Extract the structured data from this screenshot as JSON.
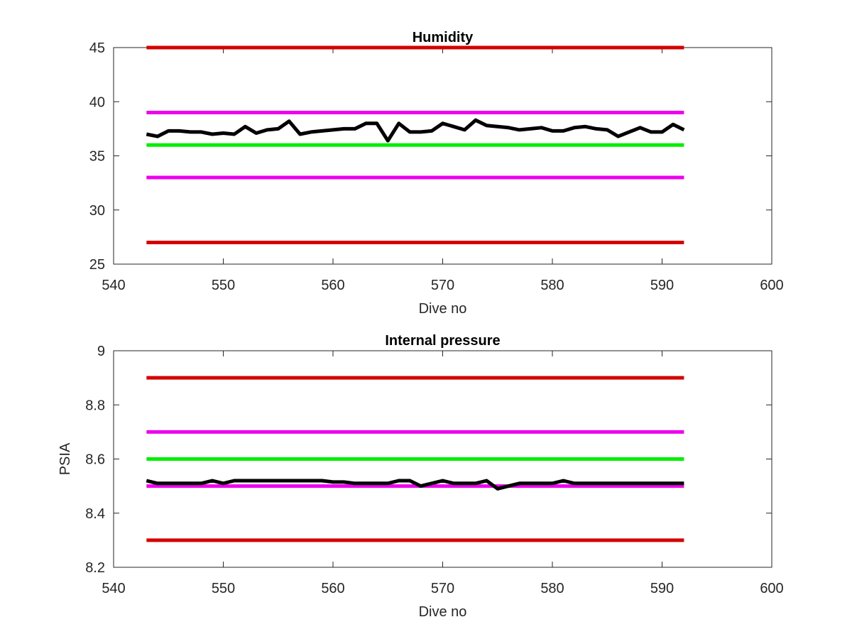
{
  "chart_data": [
    {
      "type": "line",
      "title": "Humidity",
      "xlabel": "Dive no",
      "ylabel": "",
      "xlim": [
        540,
        600
      ],
      "ylim": [
        25,
        45
      ],
      "xticks": [
        "540",
        "550",
        "560",
        "570",
        "580",
        "590",
        "600"
      ],
      "yticks": [
        "25",
        "30",
        "35",
        "40",
        "45"
      ],
      "grid": false,
      "legend": "none",
      "reference_lines": [
        {
          "y": 45,
          "x_range": [
            543,
            592
          ],
          "color": "#d40000"
        },
        {
          "y": 39,
          "x_range": [
            543,
            592
          ],
          "color": "#ee00ee"
        },
        {
          "y": 36,
          "x_range": [
            543,
            592
          ],
          "color": "#00ee00"
        },
        {
          "y": 33,
          "x_range": [
            543,
            592
          ],
          "color": "#ee00ee"
        },
        {
          "y": 27,
          "x_range": [
            543,
            592
          ],
          "color": "#d40000"
        }
      ],
      "series": [
        {
          "color": "#000000",
          "x": [
            543,
            544,
            545,
            546,
            547,
            548,
            549,
            550,
            551,
            552,
            553,
            554,
            555,
            556,
            557,
            558,
            559,
            560,
            561,
            562,
            563,
            564,
            565,
            566,
            567,
            568,
            569,
            570,
            571,
            572,
            573,
            574,
            575,
            576,
            577,
            578,
            579,
            580,
            581,
            582,
            583,
            584,
            585,
            586,
            587,
            588,
            589,
            590,
            591,
            592
          ],
          "y": [
            37.0,
            36.8,
            37.3,
            37.3,
            37.2,
            37.2,
            37.0,
            37.1,
            37.0,
            37.7,
            37.1,
            37.4,
            37.5,
            38.2,
            37.0,
            37.2,
            37.3,
            37.4,
            37.5,
            37.5,
            38.0,
            38.0,
            36.4,
            38.0,
            37.2,
            37.2,
            37.3,
            38.0,
            37.7,
            37.4,
            38.3,
            37.8,
            37.7,
            37.6,
            37.4,
            37.5,
            37.6,
            37.3,
            37.3,
            37.6,
            37.7,
            37.5,
            37.4,
            36.8,
            37.2,
            37.6,
            37.2,
            37.2,
            37.9,
            37.4
          ]
        }
      ]
    },
    {
      "type": "line",
      "title": "Internal pressure",
      "xlabel": "Dive no",
      "ylabel": "PSIA",
      "xlim": [
        540,
        600
      ],
      "ylim": [
        8.2,
        9
      ],
      "xticks": [
        "540",
        "550",
        "560",
        "570",
        "580",
        "590",
        "600"
      ],
      "yticks": [
        "8.2",
        "8.4",
        "8.6",
        "8.8",
        "9"
      ],
      "grid": false,
      "legend": "none",
      "reference_lines": [
        {
          "y": 8.9,
          "x_range": [
            543,
            592
          ],
          "color": "#d40000"
        },
        {
          "y": 8.7,
          "x_range": [
            543,
            592
          ],
          "color": "#ee00ee"
        },
        {
          "y": 8.6,
          "x_range": [
            543,
            592
          ],
          "color": "#00ee00"
        },
        {
          "y": 8.5,
          "x_range": [
            543,
            592
          ],
          "color": "#ee00ee"
        },
        {
          "y": 8.3,
          "x_range": [
            543,
            592
          ],
          "color": "#d40000"
        }
      ],
      "series": [
        {
          "color": "#000000",
          "x": [
            543,
            544,
            545,
            546,
            547,
            548,
            549,
            550,
            551,
            552,
            553,
            554,
            555,
            556,
            557,
            558,
            559,
            560,
            561,
            562,
            563,
            564,
            565,
            566,
            567,
            568,
            569,
            570,
            571,
            572,
            573,
            574,
            575,
            576,
            577,
            578,
            579,
            580,
            581,
            582,
            583,
            584,
            585,
            586,
            587,
            588,
            589,
            590,
            591,
            592
          ],
          "y": [
            8.52,
            8.51,
            8.51,
            8.51,
            8.51,
            8.51,
            8.52,
            8.51,
            8.52,
            8.52,
            8.52,
            8.52,
            8.52,
            8.52,
            8.52,
            8.52,
            8.52,
            8.515,
            8.515,
            8.51,
            8.51,
            8.51,
            8.51,
            8.52,
            8.52,
            8.5,
            8.51,
            8.52,
            8.51,
            8.51,
            8.51,
            8.52,
            8.49,
            8.5,
            8.51,
            8.51,
            8.51,
            8.51,
            8.52,
            8.51,
            8.51,
            8.51,
            8.51,
            8.51,
            8.51,
            8.51,
            8.51,
            8.51,
            8.51,
            8.51
          ]
        }
      ]
    }
  ]
}
